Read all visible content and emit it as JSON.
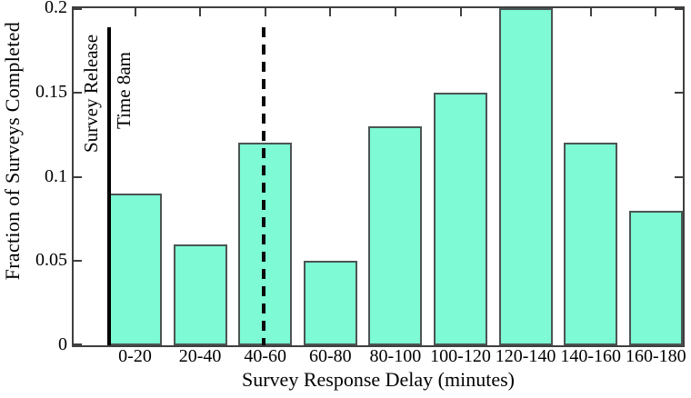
{
  "chart_data": {
    "type": "bar",
    "title": "",
    "xlabel": "Survey Response Delay (minutes)",
    "ylabel": "Fraction of Surveys Completed",
    "categories": [
      "0-20",
      "20-40",
      "40-60",
      "60-80",
      "80-100",
      "100-120",
      "120-140",
      "140-160",
      "160-180"
    ],
    "values": [
      0.09,
      0.06,
      0.12,
      0.05,
      0.13,
      0.15,
      0.2,
      0.12,
      0.08
    ],
    "ylim": [
      0,
      0.2
    ],
    "yticks": [
      0,
      0.05,
      0.1,
      0.15,
      0.2
    ],
    "ytick_labels": [
      "0",
      "0.05",
      "0.1",
      "0.15",
      "0.2"
    ],
    "grid": false,
    "legend": null,
    "bar_color": "#7efad5",
    "bar_border_color": "#4a5553",
    "axis_color": "#3f3f3f",
    "annotations": [
      {
        "type": "vline",
        "line_style": "solid",
        "x_frac": 0.0575,
        "label_left": "Survey Release",
        "label_right": "Time 8am",
        "color": "#000000"
      },
      {
        "type": "vline",
        "line_style": "dashed",
        "x_frac": 0.312,
        "label_left": "",
        "label_right": "",
        "color": "#000000"
      }
    ]
  }
}
